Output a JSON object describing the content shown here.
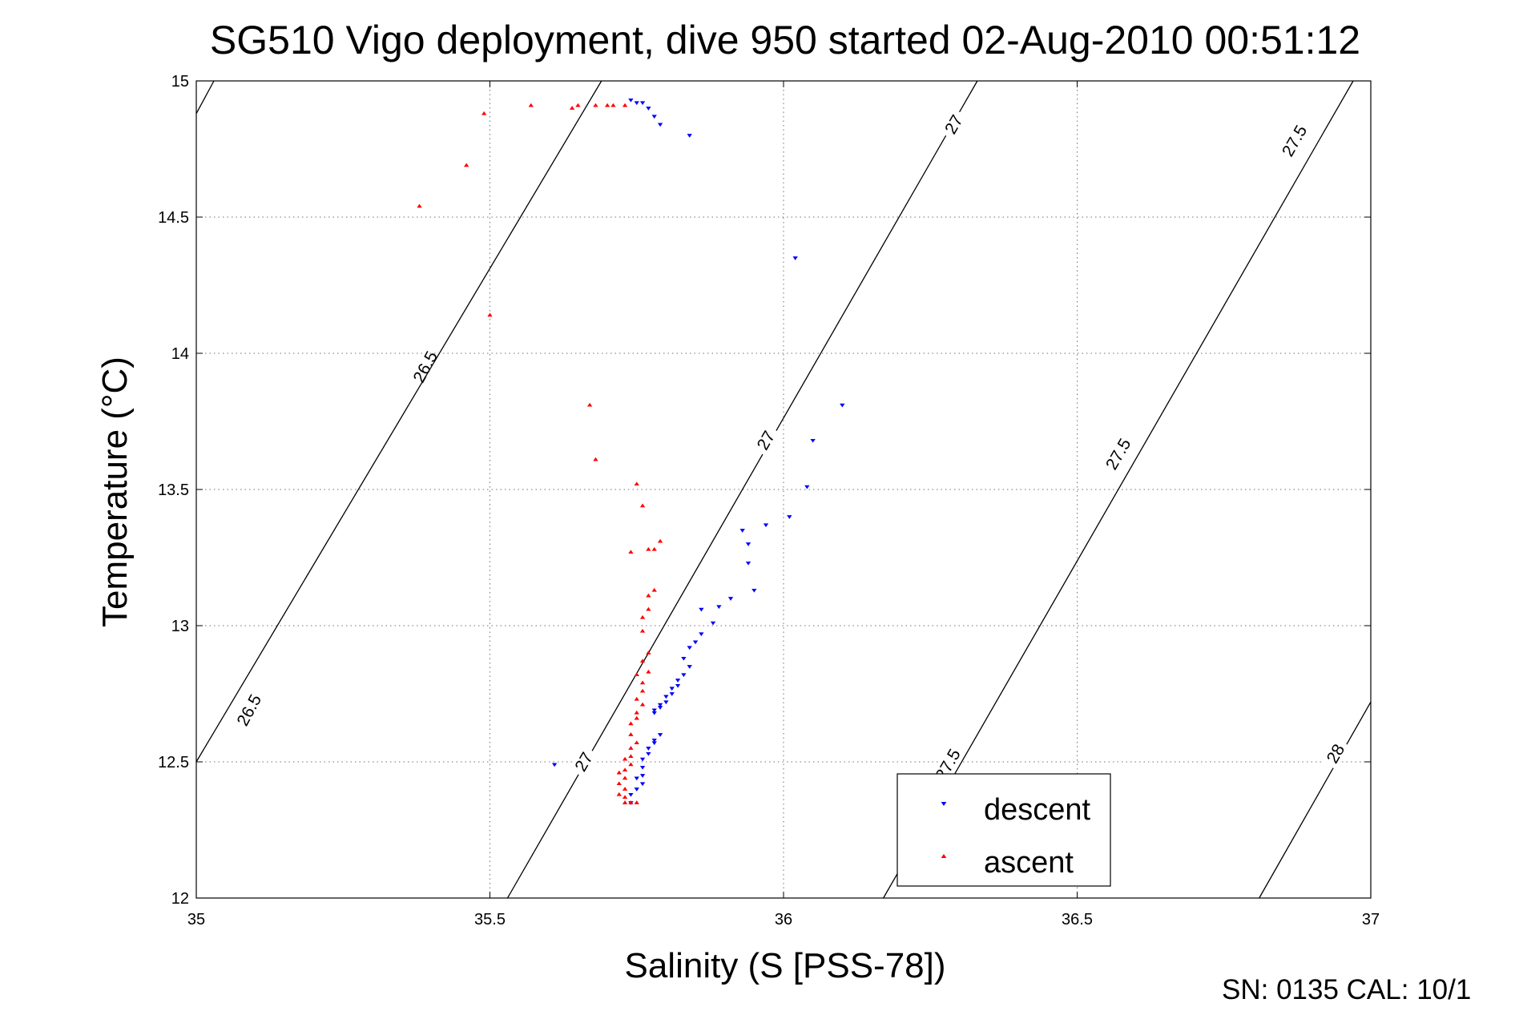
{
  "chart_data": {
    "type": "scatter",
    "title": "SG510 Vigo deployment, dive 950 started 02-Aug-2010 00:51:12",
    "xlabel": "Salinity (S [PSS-78])",
    "ylabel": "Temperature (°C)",
    "xlim": [
      35,
      37
    ],
    "ylim": [
      12,
      15
    ],
    "x_ticks": [
      "35",
      "35.5",
      "36",
      "36.5",
      "37"
    ],
    "y_ticks": [
      "12",
      "12.5",
      "13",
      "13.5",
      "14",
      "14.5",
      "15"
    ],
    "grid": true,
    "legend_position": "bottom-right",
    "contour_labels": [
      "26.5",
      "27",
      "27.5",
      "28"
    ],
    "contours": [
      {
        "level": 26.5,
        "points": [
          [
            35.0,
            14.88
          ],
          [
            35.03,
            15.0
          ]
        ],
        "labels": [
          [
            35.39,
            13.95
          ],
          [
            35.09,
            12.69
          ]
        ]
      },
      {
        "level": 26.5,
        "points": [
          [
            35.0,
            12.5
          ],
          [
            35.69,
            15.0
          ]
        ],
        "labels": []
      },
      {
        "level": 27,
        "points": [
          [
            35.53,
            12.0
          ],
          [
            36.33,
            15.0
          ]
        ],
        "labels": [
          [
            35.66,
            12.5
          ],
          [
            35.97,
            13.68
          ],
          [
            36.29,
            14.84
          ]
        ]
      },
      {
        "level": 27.5,
        "points": [
          [
            36.17,
            12.0
          ],
          [
            36.97,
            15.0
          ]
        ],
        "labels": [
          [
            36.28,
            12.49
          ],
          [
            36.57,
            13.63
          ],
          [
            36.87,
            14.78
          ]
        ]
      },
      {
        "level": 28,
        "points": [
          [
            36.81,
            12.0
          ],
          [
            37.0,
            12.72
          ]
        ],
        "labels": [
          [
            36.94,
            12.53
          ]
        ]
      }
    ],
    "series": [
      {
        "name": "descent",
        "color": "#0000ff",
        "marker": "triangle-down",
        "points": [
          [
            35.74,
            14.93
          ],
          [
            35.75,
            14.92
          ],
          [
            35.76,
            14.92
          ],
          [
            35.77,
            14.9
          ],
          [
            35.78,
            14.87
          ],
          [
            35.79,
            14.84
          ],
          [
            35.84,
            14.8
          ],
          [
            36.02,
            14.35
          ],
          [
            36.1,
            13.81
          ],
          [
            36.05,
            13.68
          ],
          [
            36.04,
            13.51
          ],
          [
            36.01,
            13.4
          ],
          [
            35.97,
            13.37
          ],
          [
            35.93,
            13.35
          ],
          [
            35.94,
            13.3
          ],
          [
            35.94,
            13.23
          ],
          [
            35.95,
            13.13
          ],
          [
            35.91,
            13.1
          ],
          [
            35.89,
            13.07
          ],
          [
            35.86,
            13.06
          ],
          [
            35.88,
            13.01
          ],
          [
            35.86,
            12.97
          ],
          [
            35.85,
            12.94
          ],
          [
            35.84,
            12.92
          ],
          [
            35.83,
            12.88
          ],
          [
            35.84,
            12.85
          ],
          [
            35.83,
            12.82
          ],
          [
            35.82,
            12.8
          ],
          [
            35.82,
            12.78
          ],
          [
            35.81,
            12.77
          ],
          [
            35.81,
            12.75
          ],
          [
            35.8,
            12.74
          ],
          [
            35.8,
            12.72
          ],
          [
            35.79,
            12.71
          ],
          [
            35.79,
            12.7
          ],
          [
            35.78,
            12.69
          ],
          [
            35.78,
            12.68
          ],
          [
            35.79,
            12.6
          ],
          [
            35.78,
            12.58
          ],
          [
            35.78,
            12.57
          ],
          [
            35.77,
            12.55
          ],
          [
            35.77,
            12.53
          ],
          [
            35.76,
            12.51
          ],
          [
            35.76,
            12.48
          ],
          [
            35.76,
            12.45
          ],
          [
            35.75,
            12.44
          ],
          [
            35.76,
            12.42
          ],
          [
            35.75,
            12.4
          ],
          [
            35.74,
            12.38
          ],
          [
            35.74,
            12.35
          ],
          [
            35.61,
            12.49
          ]
        ]
      },
      {
        "name": "ascent",
        "color": "#ff0000",
        "marker": "triangle-up",
        "points": [
          [
            35.73,
            14.91
          ],
          [
            35.71,
            14.91
          ],
          [
            35.7,
            14.91
          ],
          [
            35.68,
            14.91
          ],
          [
            35.65,
            14.91
          ],
          [
            35.64,
            14.9
          ],
          [
            35.57,
            14.91
          ],
          [
            35.49,
            14.88
          ],
          [
            35.46,
            14.69
          ],
          [
            35.38,
            14.54
          ],
          [
            35.5,
            14.14
          ],
          [
            35.67,
            13.81
          ],
          [
            35.68,
            13.61
          ],
          [
            35.75,
            13.52
          ],
          [
            35.76,
            13.44
          ],
          [
            35.79,
            13.31
          ],
          [
            35.78,
            13.28
          ],
          [
            35.77,
            13.28
          ],
          [
            35.74,
            13.27
          ],
          [
            35.78,
            13.13
          ],
          [
            35.77,
            13.11
          ],
          [
            35.77,
            13.06
          ],
          [
            35.76,
            13.03
          ],
          [
            35.76,
            12.98
          ],
          [
            35.77,
            12.9
          ],
          [
            35.76,
            12.87
          ],
          [
            35.77,
            12.83
          ],
          [
            35.75,
            12.82
          ],
          [
            35.76,
            12.79
          ],
          [
            35.76,
            12.76
          ],
          [
            35.75,
            12.73
          ],
          [
            35.76,
            12.71
          ],
          [
            35.75,
            12.68
          ],
          [
            35.75,
            12.66
          ],
          [
            35.74,
            12.64
          ],
          [
            35.74,
            12.6
          ],
          [
            35.75,
            12.57
          ],
          [
            35.74,
            12.55
          ],
          [
            35.74,
            12.52
          ],
          [
            35.73,
            12.51
          ],
          [
            35.74,
            12.49
          ],
          [
            35.73,
            12.47
          ],
          [
            35.72,
            12.46
          ],
          [
            35.73,
            12.44
          ],
          [
            35.72,
            12.42
          ],
          [
            35.73,
            12.4
          ],
          [
            35.72,
            12.38
          ],
          [
            35.73,
            12.37
          ],
          [
            35.73,
            12.35
          ],
          [
            35.74,
            12.35
          ],
          [
            35.75,
            12.35
          ]
        ]
      }
    ]
  },
  "footer_text": "SN: 0135  CAL: 10/1"
}
